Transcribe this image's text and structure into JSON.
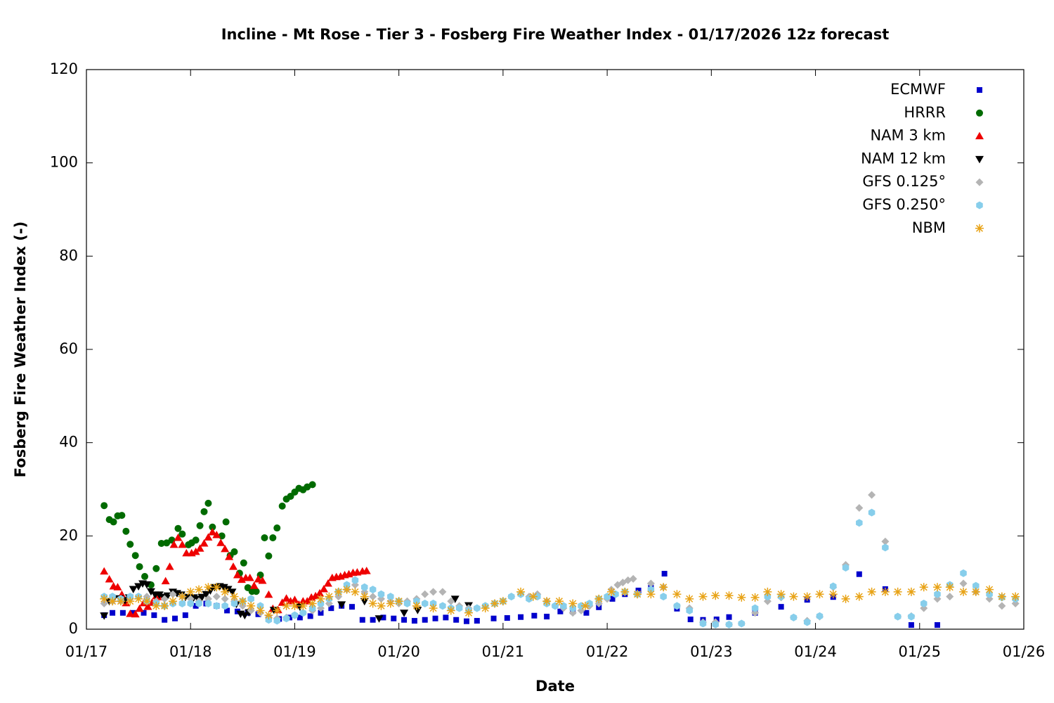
{
  "chart_data": {
    "type": "scatter",
    "title": "Incline - Mt Rose - Tier 3 - Fosberg Fire Weather Index - 01/17/2026 12z forecast",
    "x_label": "Date",
    "y_label": "Fosberg Fire Weather Index (-)",
    "xlim": [
      0,
      9
    ],
    "ylim": [
      0,
      120
    ],
    "xticks": [
      {
        "value": 0,
        "label": "01/17"
      },
      {
        "value": 1,
        "label": "01/18"
      },
      {
        "value": 2,
        "label": "01/19"
      },
      {
        "value": 3,
        "label": "01/20"
      },
      {
        "value": 4,
        "label": "01/21"
      },
      {
        "value": 5,
        "label": "01/22"
      },
      {
        "value": 6,
        "label": "01/23"
      },
      {
        "value": 7,
        "label": "01/24"
      },
      {
        "value": 8,
        "label": "01/25"
      },
      {
        "value": 9,
        "label": "01/26"
      }
    ],
    "yticks": [
      0,
      20,
      40,
      60,
      80,
      100,
      120
    ],
    "legend": "top-right",
    "series": [
      {
        "name": "ECMWF",
        "color": "#0000cc",
        "marker": "square",
        "x": [
          0.17,
          0.25,
          0.35,
          0.45,
          0.55,
          0.65,
          0.75,
          0.85,
          0.95,
          1.05,
          1.15,
          1.25,
          1.35,
          1.45,
          1.55,
          1.65,
          1.75,
          1.85,
          1.95,
          2.05,
          2.15,
          2.25,
          2.35,
          2.45,
          2.55,
          2.65,
          2.75,
          2.85,
          2.95,
          3.05,
          3.15,
          3.25,
          3.35,
          3.45,
          3.55,
          3.65,
          3.75,
          3.91,
          4.04,
          4.17,
          4.3,
          4.42,
          4.55,
          4.67,
          4.8,
          4.92,
          5.05,
          5.17,
          5.3,
          5.42,
          5.55,
          5.67,
          5.8,
          5.92,
          6.05,
          6.17,
          6.42,
          6.67,
          6.92,
          7.17,
          7.42,
          7.67,
          7.92,
          8.17
        ],
        "values": [
          3,
          3.5,
          3.5,
          3.5,
          3.5,
          3,
          2,
          2.3,
          3,
          5,
          5.5,
          5,
          4,
          3.8,
          3.5,
          3.2,
          2.5,
          2.2,
          2.5,
          2.5,
          2.8,
          3.5,
          4.5,
          5,
          4.8,
          2,
          2,
          2.5,
          2.3,
          2,
          1.8,
          2,
          2.3,
          2.5,
          2,
          1.7,
          1.8,
          2.3,
          2.4,
          2.6,
          2.9,
          2.7,
          3.8,
          3.8,
          3.5,
          4.7,
          6.5,
          7.5,
          8.3,
          8.9,
          11.9,
          4.4,
          2.1,
          2,
          2.1,
          2.6,
          3.5,
          4.8,
          6.3,
          6.9,
          11.8,
          8.6,
          0.9,
          0.9
        ]
      },
      {
        "name": "HRRR",
        "color": "#006b00",
        "marker": "circle",
        "x": [
          0.17,
          0.22,
          0.26,
          0.3,
          0.34,
          0.38,
          0.42,
          0.47,
          0.51,
          0.56,
          0.62,
          0.67,
          0.72,
          0.77,
          0.82,
          0.88,
          0.92,
          0.98,
          1.01,
          1.05,
          1.09,
          1.13,
          1.17,
          1.21,
          1.3,
          1.34,
          1.38,
          1.42,
          1.47,
          1.51,
          1.55,
          1.59,
          1.63,
          1.67,
          1.71,
          1.75,
          1.79,
          1.83,
          1.88,
          1.92,
          1.96,
          2.0,
          2.04,
          2.08,
          2.12,
          2.17
        ],
        "values": [
          26.5,
          23.5,
          23,
          24.3,
          24.4,
          21,
          18.2,
          15.8,
          13.4,
          11.3,
          9.5,
          13,
          18.4,
          18.5,
          19.1,
          21.6,
          20.4,
          18.1,
          18.5,
          19.1,
          22.2,
          25.2,
          27,
          21.9,
          20,
          23,
          15.8,
          16.6,
          12,
          14.2,
          8.9,
          8.1,
          8.1,
          11.6,
          19.6,
          15.7,
          19.6,
          21.7,
          26.4,
          27.9,
          28.5,
          29.4,
          30.2,
          29.9,
          30.5,
          31
        ]
      },
      {
        "name": "NAM 3 km",
        "color": "#ee0000",
        "marker": "triangle-up",
        "x": [
          0.17,
          0.22,
          0.26,
          0.3,
          0.34,
          0.38,
          0.42,
          0.47,
          0.51,
          0.55,
          0.59,
          0.63,
          0.67,
          0.72,
          0.76,
          0.8,
          0.84,
          0.88,
          0.92,
          0.96,
          1.01,
          1.05,
          1.09,
          1.13,
          1.17,
          1.21,
          1.25,
          1.29,
          1.33,
          1.37,
          1.41,
          1.45,
          1.49,
          1.53,
          1.57,
          1.61,
          1.65,
          1.69,
          1.75,
          1.79,
          1.84,
          1.88,
          1.92,
          1.96,
          2.0,
          2.04,
          2.08,
          2.12,
          2.16,
          2.2,
          2.24,
          2.28,
          2.32,
          2.36,
          2.4,
          2.44,
          2.48,
          2.52,
          2.56,
          2.6,
          2.65,
          2.69
        ],
        "values": [
          12.4,
          10.7,
          9.2,
          9,
          7.4,
          5.6,
          3.3,
          3.2,
          4.4,
          5.6,
          4.8,
          5.7,
          7.1,
          6.9,
          10.3,
          13.4,
          18.1,
          19.6,
          18.1,
          16.3,
          16.3,
          16.6,
          17.3,
          18.4,
          19.7,
          20.8,
          20.2,
          18.5,
          17.2,
          15.5,
          13.4,
          11.6,
          10.6,
          11,
          11,
          9.3,
          10.7,
          10.4,
          7.4,
          4.4,
          4.1,
          5.7,
          6.6,
          6,
          6.3,
          5.3,
          6,
          6,
          6.8,
          7.1,
          7.7,
          8.6,
          9.8,
          11,
          11.2,
          11.3,
          11.6,
          11.8,
          12.1,
          12.2,
          12.4,
          12.5
        ]
      },
      {
        "name": "NAM 12 km",
        "color": "#000000",
        "marker": "triangle-down",
        "x": [
          0.17,
          0.22,
          0.26,
          0.32,
          0.37,
          0.41,
          0.45,
          0.5,
          0.54,
          0.58,
          0.62,
          0.66,
          0.7,
          0.74,
          0.78,
          0.83,
          0.87,
          0.91,
          0.95,
          0.99,
          1.03,
          1.07,
          1.11,
          1.15,
          1.19,
          1.23,
          1.28,
          1.32,
          1.36,
          1.4,
          1.44,
          1.48,
          1.52,
          1.56,
          1.8,
          2.05,
          2.45,
          2.67,
          2.81,
          3.05,
          3.18,
          3.54,
          3.67
        ],
        "values": [
          2.9,
          6,
          6.5,
          6.6,
          6.2,
          6.8,
          8.6,
          9.2,
          9.8,
          9.6,
          8.1,
          7.4,
          7.4,
          6.9,
          7.2,
          8,
          7.7,
          7.4,
          6.9,
          6.8,
          6.8,
          6.5,
          6.9,
          7.5,
          8.3,
          9,
          9.2,
          9,
          8.6,
          8,
          5.4,
          3.3,
          3,
          3.6,
          4.1,
          4.8,
          5.3,
          6,
          2.3,
          3.5,
          4.1,
          6.5,
          5.1
        ]
      },
      {
        "name": "GFS 0.125°",
        "color": "#b4b4b4",
        "marker": "diamond",
        "x": [
          0.17,
          0.25,
          0.33,
          0.42,
          0.5,
          0.58,
          0.67,
          0.75,
          0.83,
          0.92,
          1.0,
          1.08,
          1.17,
          1.25,
          1.33,
          1.42,
          1.5,
          1.58,
          1.67,
          1.75,
          1.83,
          1.92,
          2.0,
          2.08,
          2.17,
          2.25,
          2.33,
          2.42,
          2.5,
          2.58,
          2.67,
          2.75,
          2.83,
          2.92,
          3.0,
          3.08,
          3.17,
          3.25,
          3.33,
          3.42,
          3.5,
          3.58,
          3.67,
          3.75,
          3.83,
          3.92,
          4.0,
          4.08,
          4.17,
          4.25,
          4.33,
          4.42,
          4.5,
          4.58,
          4.67,
          4.75,
          4.83,
          4.92,
          5.0,
          5.04,
          5.1,
          5.15,
          5.2,
          5.25,
          5.42,
          5.54,
          5.67,
          5.79,
          5.92,
          6.04,
          6.17,
          6.29,
          6.42,
          6.54,
          6.67,
          6.79,
          6.92,
          7.04,
          7.17,
          7.29,
          7.42,
          7.54,
          7.67,
          7.79,
          7.92,
          8.04,
          8.17,
          8.29,
          8.42,
          8.54,
          8.67,
          8.79,
          8.92
        ],
        "values": [
          5.5,
          6,
          6,
          6.5,
          7,
          7,
          6,
          6.5,
          7.5,
          7,
          6.5,
          6,
          6.5,
          7,
          6.5,
          6,
          5,
          4,
          3.5,
          2.5,
          2.3,
          2.5,
          3,
          3.5,
          4,
          4.5,
          5.5,
          7,
          8.5,
          9.5,
          8,
          7,
          6.5,
          6,
          5.5,
          6,
          6.5,
          7.5,
          8,
          8,
          6,
          5,
          4.5,
          4.5,
          5,
          5.5,
          6,
          7,
          7.5,
          7,
          7.5,
          6,
          5,
          4.5,
          3.5,
          4,
          5,
          5.5,
          6.5,
          8.5,
          9.5,
          10,
          10.5,
          10.8,
          9.8,
          9,
          5,
          4.5,
          1.5,
          1.5,
          1,
          1.2,
          3.5,
          6,
          6.8,
          2.5,
          1.8,
          2.7,
          9,
          13.8,
          26,
          28.8,
          18.8,
          2.7,
          2.8,
          4.5,
          6.5,
          7,
          9.8,
          8,
          6.5,
          5,
          5.5
        ]
      },
      {
        "name": "GFS 0.250°",
        "color": "#87ceeb",
        "marker": "hexagon",
        "x": [
          0.17,
          0.25,
          0.33,
          0.42,
          0.5,
          0.58,
          0.67,
          0.75,
          0.83,
          0.92,
          1.0,
          1.08,
          1.17,
          1.25,
          1.33,
          1.42,
          1.5,
          1.58,
          1.67,
          1.75,
          1.83,
          1.92,
          2.0,
          2.08,
          2.17,
          2.25,
          2.33,
          2.42,
          2.5,
          2.58,
          2.67,
          2.75,
          2.83,
          2.92,
          3.0,
          3.08,
          3.17,
          3.25,
          3.33,
          3.42,
          3.5,
          3.58,
          3.67,
          3.75,
          3.83,
          3.92,
          4.0,
          4.08,
          4.17,
          4.25,
          4.33,
          4.42,
          4.5,
          4.58,
          4.67,
          4.75,
          4.83,
          4.92,
          5.0,
          5.08,
          5.17,
          5.29,
          5.42,
          5.54,
          5.67,
          5.79,
          5.92,
          6.04,
          6.17,
          6.29,
          6.42,
          6.54,
          6.67,
          6.79,
          6.92,
          7.04,
          7.17,
          7.29,
          7.42,
          7.54,
          7.67,
          7.79,
          7.92,
          8.04,
          8.17,
          8.29,
          8.42,
          8.54,
          8.67,
          8.79,
          8.92
        ],
        "values": [
          7,
          7,
          6.5,
          7,
          7,
          6,
          5.5,
          5,
          5.5,
          5.5,
          5.5,
          5.5,
          5.5,
          5,
          5,
          5.5,
          6,
          6.5,
          5,
          2,
          1.8,
          2.3,
          3,
          3.5,
          4.5,
          5.5,
          6.5,
          8,
          9.5,
          10.5,
          9,
          8.5,
          7.5,
          7,
          6,
          5.5,
          6,
          5.5,
          5.5,
          5,
          4.5,
          4.5,
          4,
          4.5,
          5,
          5.5,
          6,
          7,
          7.5,
          6.5,
          7,
          5.5,
          5,
          5,
          4.5,
          5,
          5.5,
          6.5,
          7,
          7.5,
          8,
          7.5,
          8.5,
          7,
          5,
          4,
          1.2,
          1,
          1,
          1.2,
          4.5,
          7,
          7,
          2.5,
          1.5,
          2.8,
          9.2,
          13.2,
          22.8,
          25,
          17.5,
          2.7,
          2.7,
          5.5,
          7.5,
          9.5,
          12,
          9.3,
          7.5,
          6.8,
          6.5
        ]
      },
      {
        "name": "NBM",
        "color": "#e8a317",
        "marker": "star",
        "x": [
          0.17,
          0.25,
          0.33,
          0.42,
          0.5,
          0.58,
          0.67,
          0.75,
          0.83,
          0.92,
          1.0,
          1.08,
          1.17,
          1.25,
          1.33,
          1.42,
          1.5,
          1.58,
          1.67,
          1.75,
          1.83,
          1.92,
          2.0,
          2.08,
          2.17,
          2.25,
          2.33,
          2.42,
          2.5,
          2.58,
          2.67,
          2.75,
          2.83,
          2.92,
          3.0,
          3.17,
          3.33,
          3.5,
          3.67,
          3.83,
          3.92,
          4.0,
          4.17,
          4.29,
          4.42,
          4.54,
          4.67,
          4.79,
          4.92,
          5.04,
          5.17,
          5.29,
          5.42,
          5.54,
          5.67,
          5.79,
          5.92,
          6.04,
          6.17,
          6.29,
          6.42,
          6.54,
          6.67,
          6.79,
          6.92,
          7.04,
          7.17,
          7.29,
          7.42,
          7.54,
          7.67,
          7.79,
          7.92,
          8.04,
          8.17,
          8.29,
          8.42,
          8.54,
          8.67,
          8.79,
          8.92
        ],
        "values": [
          6.5,
          6,
          6,
          6,
          6.5,
          6,
          5,
          5,
          6,
          7,
          8,
          8.5,
          9,
          9,
          8,
          7,
          6,
          5,
          4,
          3,
          4,
          5,
          5,
          5,
          5.5,
          6.5,
          7,
          8,
          8.5,
          8,
          7,
          5.5,
          5,
          5.5,
          6,
          5,
          4.5,
          4,
          3.5,
          4.5,
          5.5,
          6,
          8,
          7,
          6,
          6,
          5.5,
          5,
          6.5,
          8,
          8,
          7.5,
          7.5,
          9,
          7.5,
          6.5,
          7,
          7.2,
          7.2,
          6.8,
          6.8,
          8,
          7.5,
          7,
          7,
          7.5,
          7.5,
          6.5,
          7,
          8,
          8,
          8,
          8,
          9,
          9,
          9,
          8,
          8,
          8.5,
          7,
          7
        ]
      }
    ]
  }
}
